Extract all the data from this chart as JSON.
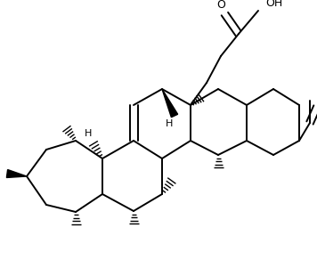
{
  "figsize": [
    3.56,
    2.92
  ],
  "dpi": 100,
  "xlim": [
    0,
    356
  ],
  "ylim": [
    0,
    292
  ]
}
